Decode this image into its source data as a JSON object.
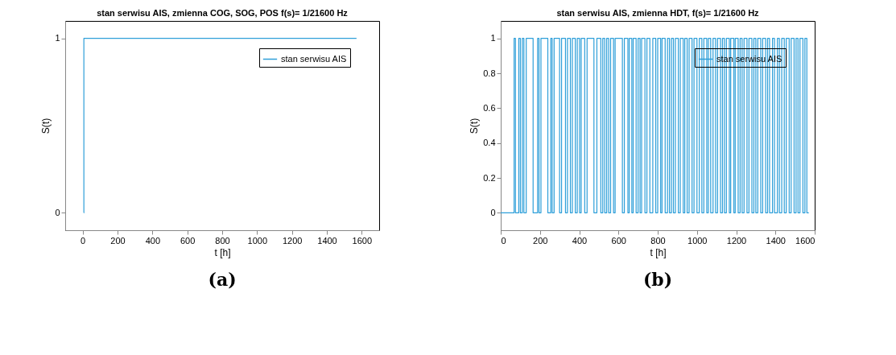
{
  "chart_data": [
    {
      "type": "step",
      "title": "stan serwisu AIS, zmienna COG, SOG, POS f(s)= 1/21600 Hz",
      "xlabel": "t [h]",
      "ylabel": "S(t)",
      "xlim": [
        -100,
        1700
      ],
      "xticks": [
        0,
        200,
        400,
        600,
        800,
        1000,
        1200,
        1400,
        1600
      ],
      "ylim": [
        -0.1,
        1.1
      ],
      "yticks": [
        0,
        1
      ],
      "legend": "top right",
      "annotations": [
        "(a)"
      ],
      "series": [
        {
          "name": "stan serwisu AIS",
          "color": "#2e9fd9",
          "x": [
            6,
            7,
            1570
          ],
          "values": [
            0,
            1,
            1
          ]
        }
      ]
    },
    {
      "type": "step",
      "title": "stan serwisu AIS, zmienna HDT, f(s)= 1/21600 Hz",
      "xlabel": "t [h]",
      "ylabel": "S(t)",
      "xlim": [
        0,
        1600
      ],
      "xticks": [
        0,
        200,
        400,
        600,
        800,
        1000,
        1200,
        1400,
        1600
      ],
      "ylim": [
        -0.1,
        1.1
      ],
      "yticks": [
        0,
        0.2,
        0.4,
        0.6,
        0.8,
        1
      ],
      "legend": "top right",
      "annotations": [
        "(b)"
      ],
      "series": [
        {
          "name": "stan serwisu AIS",
          "color": "#2e9fd9",
          "x": [
            0,
            68,
            75,
            92,
            100,
            110,
            118,
            130,
            165,
            188,
            195,
            205,
            240,
            255,
            262,
            272,
            300,
            310,
            330,
            340,
            355,
            365,
            380,
            390,
            402,
            410,
            428,
            440,
            475,
            490,
            510,
            520,
            530,
            540,
            550,
            560,
            575,
            583,
            620,
            630,
            648,
            655,
            668,
            675,
            690,
            700,
            710,
            718,
            735,
            745,
            760,
            775,
            790,
            800,
            815,
            822,
            838,
            850,
            860,
            870,
            880,
            890,
            905,
            915,
            930,
            938,
            950,
            960,
            975,
            985,
            1000,
            1012,
            1025,
            1035,
            1050,
            1058,
            1070,
            1082,
            1095,
            1105,
            1120,
            1130,
            1140,
            1150,
            1165,
            1172,
            1188,
            1195,
            1210,
            1220,
            1230,
            1240,
            1255,
            1265,
            1280,
            1290,
            1300,
            1310,
            1325,
            1335,
            1350,
            1360,
            1370,
            1385,
            1395,
            1410,
            1420,
            1432,
            1445,
            1455,
            1470,
            1480,
            1495,
            1505,
            1515,
            1525,
            1540,
            1550,
            1560,
            1570
          ],
          "values": [
            0,
            1,
            0,
            1,
            0,
            1,
            0,
            1,
            0,
            1,
            0,
            1,
            0,
            1,
            0,
            1,
            0,
            1,
            0,
            1,
            0,
            1,
            0,
            1,
            0,
            1,
            0,
            1,
            0,
            1,
            0,
            1,
            0,
            1,
            0,
            1,
            0,
            1,
            0,
            1,
            0,
            1,
            0,
            1,
            0,
            1,
            0,
            1,
            0,
            1,
            0,
            1,
            0,
            1,
            0,
            1,
            0,
            1,
            0,
            1,
            0,
            1,
            0,
            1,
            0,
            1,
            0,
            1,
            0,
            1,
            0,
            1,
            0,
            1,
            0,
            1,
            0,
            1,
            0,
            1,
            0,
            1,
            0,
            1,
            0,
            1,
            0,
            1,
            0,
            1,
            0,
            1,
            0,
            1,
            0,
            1,
            0,
            1,
            0,
            1,
            0,
            1,
            0,
            1,
            0,
            1,
            0,
            1,
            0,
            1,
            0,
            1,
            0,
            1,
            0,
            1,
            0,
            1,
            0,
            0
          ]
        }
      ]
    }
  ]
}
